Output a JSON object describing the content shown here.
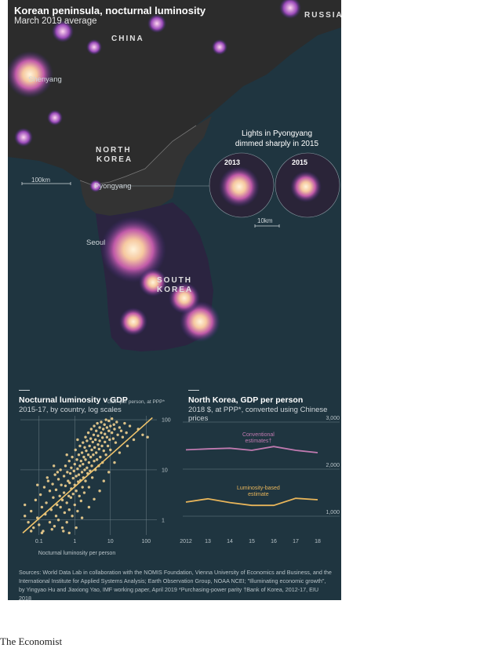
{
  "header": {
    "title": "Korean peninsula, nocturnal luminosity",
    "subtitle": "March 2019 average"
  },
  "map": {
    "labels": {
      "russia": "RUSSIA",
      "china": "CHINA",
      "shenyang": "Shenyang",
      "north_korea_1": "NORTH",
      "north_korea_2": "KOREA",
      "pyongyang": "Pyongyang",
      "seoul": "Seoul",
      "south_korea_1": "SOUTH",
      "south_korea_2": "KOREA"
    },
    "scale_main": "100km",
    "inset": {
      "title_line1": "Lights in Pyongyang",
      "title_line2": "dimmed sharply in 2015",
      "year_a": "2013",
      "year_b": "2015",
      "scale": "10km"
    },
    "colors": {
      "land": "#2e2e2e",
      "sea": "#1f3540",
      "glow": "#ffe8c0",
      "glow_mid": "#c05aa8",
      "glow_low": "#4a2f8a"
    }
  },
  "chart1": {
    "title": "Nocturnal luminosity v GDP",
    "subtitle": "2015-17, by country, log scales"
  },
  "chart2": {
    "title": "North Korea, GDP per person",
    "subtitle": "2018 $, at PPP*, converted using Chinese prices"
  },
  "chart_data": [
    {
      "type": "scatter",
      "title": "Nocturnal luminosity v GDP",
      "subtitle": "2015-17, by country, log scales",
      "xlabel": "Nocturnal luminosity per person",
      "ylabel": "GDP per person, at PPP*",
      "x_scale": "log",
      "y_scale": "log",
      "xlim": [
        0.03,
        200
      ],
      "ylim": [
        0.5,
        120
      ],
      "x_ticks": [
        "0.1",
        "1",
        "10",
        "100"
      ],
      "y_ticks": [
        "1",
        "10",
        "100"
      ],
      "trend_color": "#f0c46c",
      "point_color": "#f0d090",
      "trend_line": [
        [
          0.035,
          0.55
        ],
        [
          150,
          110
        ]
      ],
      "points": [
        [
          0.05,
          0.9
        ],
        [
          0.06,
          1.5
        ],
        [
          0.07,
          0.7
        ],
        [
          0.08,
          2.5
        ],
        [
          0.09,
          1.1
        ],
        [
          0.1,
          0.8
        ],
        [
          0.11,
          3.2
        ],
        [
          0.12,
          1.8
        ],
        [
          0.13,
          0.6
        ],
        [
          0.14,
          4.5
        ],
        [
          0.15,
          1.3
        ],
        [
          0.16,
          2.2
        ],
        [
          0.18,
          6.0
        ],
        [
          0.2,
          0.9
        ],
        [
          0.2,
          3.8
        ],
        [
          0.22,
          1.6
        ],
        [
          0.24,
          5.2
        ],
        [
          0.25,
          2.8
        ],
        [
          0.27,
          0.75
        ],
        [
          0.28,
          8.0
        ],
        [
          0.3,
          1.2
        ],
        [
          0.3,
          4.0
        ],
        [
          0.32,
          2.0
        ],
        [
          0.35,
          6.5
        ],
        [
          0.35,
          1.0
        ],
        [
          0.38,
          3.0
        ],
        [
          0.4,
          10.0
        ],
        [
          0.4,
          1.8
        ],
        [
          0.42,
          5.0
        ],
        [
          0.45,
          2.5
        ],
        [
          0.45,
          0.7
        ],
        [
          0.5,
          7.5
        ],
        [
          0.5,
          3.5
        ],
        [
          0.52,
          1.4
        ],
        [
          0.55,
          12.0
        ],
        [
          0.55,
          4.8
        ],
        [
          0.6,
          2.2
        ],
        [
          0.6,
          0.9
        ],
        [
          0.62,
          9.0
        ],
        [
          0.65,
          6.0
        ],
        [
          0.68,
          3.0
        ],
        [
          0.7,
          15.0
        ],
        [
          0.7,
          1.6
        ],
        [
          0.72,
          5.5
        ],
        [
          0.75,
          8.5
        ],
        [
          0.78,
          2.8
        ],
        [
          0.8,
          11.0
        ],
        [
          0.8,
          4.2
        ],
        [
          0.85,
          1.2
        ],
        [
          0.85,
          18.0
        ],
        [
          0.9,
          6.8
        ],
        [
          0.9,
          3.3
        ],
        [
          0.95,
          9.5
        ],
        [
          1.0,
          2.0
        ],
        [
          1.0,
          13.0
        ],
        [
          1.0,
          5.0
        ],
        [
          1.05,
          25.0
        ],
        [
          1.1,
          7.5
        ],
        [
          1.1,
          3.8
        ],
        [
          1.15,
          16.0
        ],
        [
          1.2,
          1.5
        ],
        [
          1.2,
          10.5
        ],
        [
          1.25,
          5.8
        ],
        [
          1.3,
          20.0
        ],
        [
          1.3,
          8.0
        ],
        [
          1.35,
          3.0
        ],
        [
          1.4,
          30.0
        ],
        [
          1.4,
          12.0
        ],
        [
          1.45,
          6.2
        ],
        [
          1.5,
          15.0
        ],
        [
          1.5,
          2.4
        ],
        [
          1.6,
          9.0
        ],
        [
          1.6,
          22.0
        ],
        [
          1.65,
          4.5
        ],
        [
          1.7,
          35.0
        ],
        [
          1.7,
          13.0
        ],
        [
          1.75,
          7.0
        ],
        [
          1.8,
          18.0
        ],
        [
          1.85,
          3.5
        ],
        [
          1.9,
          28.0
        ],
        [
          1.9,
          10.0
        ],
        [
          2.0,
          45.0
        ],
        [
          2.0,
          16.0
        ],
        [
          2.0,
          6.0
        ],
        [
          2.1,
          24.0
        ],
        [
          2.2,
          11.0
        ],
        [
          2.2,
          38.0
        ],
        [
          2.3,
          8.5
        ],
        [
          2.4,
          20.0
        ],
        [
          2.4,
          55.0
        ],
        [
          2.5,
          14.0
        ],
        [
          2.5,
          4.5
        ],
        [
          2.6,
          30.0
        ],
        [
          2.7,
          9.5
        ],
        [
          2.8,
          42.0
        ],
        [
          2.8,
          18.0
        ],
        [
          2.9,
          65.0
        ],
        [
          3.0,
          25.0
        ],
        [
          3.0,
          12.0
        ],
        [
          3.1,
          7.0
        ],
        [
          3.2,
          36.0
        ],
        [
          3.3,
          20.0
        ],
        [
          3.4,
          50.0
        ],
        [
          3.5,
          15.0
        ],
        [
          3.5,
          75.0
        ],
        [
          3.6,
          28.0
        ],
        [
          3.8,
          10.0
        ],
        [
          3.8,
          40.0
        ],
        [
          4.0,
          60.0
        ],
        [
          4.0,
          22.0
        ],
        [
          4.2,
          16.0
        ],
        [
          4.3,
          85.0
        ],
        [
          4.5,
          32.0
        ],
        [
          4.5,
          48.0
        ],
        [
          4.7,
          12.0
        ],
        [
          4.8,
          26.0
        ],
        [
          5.0,
          70.0
        ],
        [
          5.0,
          38.0
        ],
        [
          5.2,
          18.0
        ],
        [
          5.5,
          55.0
        ],
        [
          5.5,
          90.0
        ],
        [
          5.8,
          30.0
        ],
        [
          6.0,
          44.0
        ],
        [
          6.0,
          14.0
        ],
        [
          6.3,
          65.0
        ],
        [
          6.5,
          24.0
        ],
        [
          6.8,
          80.0
        ],
        [
          7.0,
          36.0
        ],
        [
          7.0,
          52.0
        ],
        [
          7.5,
          100.0
        ],
        [
          7.5,
          20.0
        ],
        [
          8.0,
          45.0
        ],
        [
          8.0,
          70.0
        ],
        [
          8.5,
          30.0
        ],
        [
          9.0,
          60.0
        ],
        [
          9.0,
          95.0
        ],
        [
          9.5,
          40.0
        ],
        [
          10.0,
          75.0
        ],
        [
          10.0,
          25.0
        ],
        [
          11.0,
          55.0
        ],
        [
          11.0,
          105.0
        ],
        [
          12.0,
          42.0
        ],
        [
          12.5,
          80.0
        ],
        [
          13.0,
          65.0
        ],
        [
          14.0,
          35.0
        ],
        [
          15.0,
          90.0
        ],
        [
          16.0,
          50.0
        ],
        [
          18.0,
          70.0
        ],
        [
          20.0,
          60.0
        ],
        [
          22.0,
          45.0
        ],
        [
          25.0,
          85.0
        ],
        [
          28.0,
          55.0
        ],
        [
          35.0,
          75.0
        ],
        [
          45.0,
          40.0
        ],
        [
          60.0,
          65.0
        ],
        [
          80.0,
          50.0
        ],
        [
          110.0,
          45.0
        ],
        [
          0.06,
          0.6
        ],
        [
          0.09,
          5.0
        ],
        [
          0.12,
          0.55
        ],
        [
          0.17,
          7.0
        ],
        [
          0.23,
          0.65
        ],
        [
          0.33,
          9.0
        ],
        [
          0.48,
          0.6
        ],
        [
          0.7,
          0.55
        ],
        [
          1.1,
          0.7
        ],
        [
          1.6,
          1.1
        ],
        [
          2.5,
          1.8
        ],
        [
          3.5,
          2.6
        ],
        [
          5.0,
          3.8
        ],
        [
          6.5,
          6.0
        ],
        [
          9.0,
          9.0
        ],
        [
          13.0,
          14.0
        ],
        [
          18.0,
          22.0
        ],
        [
          30.0,
          30.0
        ],
        [
          0.04,
          1.2
        ],
        [
          0.04,
          2.0
        ],
        [
          0.26,
          12.0
        ],
        [
          0.6,
          20.0
        ],
        [
          1.2,
          40.0
        ]
      ]
    },
    {
      "type": "line",
      "title": "North Korea, GDP per person",
      "subtitle": "2018 $, at PPP*, converted using Chinese prices",
      "x": [
        2012,
        2013,
        2014,
        2015,
        2016,
        2017,
        2018
      ],
      "x_ticks": [
        "2012",
        "13",
        "14",
        "15",
        "16",
        "17",
        "18"
      ],
      "ylim": [
        1000,
        3000
      ],
      "y_ticks": [
        "1,000",
        "2,000",
        "3,000"
      ],
      "series": [
        {
          "name": "Conventional estimates†",
          "color": "#c07ab0",
          "values": [
            2410,
            2430,
            2445,
            2400,
            2480,
            2400,
            2350
          ]
        },
        {
          "name": "Luminosity-based estimate",
          "color": "#e8b55a",
          "values": [
            1300,
            1370,
            1290,
            1230,
            1230,
            1380,
            1350
          ]
        }
      ]
    }
  ],
  "footer": {
    "sources": "Sources: World Data Lab in collaboration with the NOMIS Foundation, Vienna University of Economics and Business, and the International Institute for Applied Systems Analysis; Earth Observation Group, NOAA NCEI; \"Illuminating economic growth\", by Yingyao Hu and Jiaxiong Yao, IMF working paper, April 2019   *Purchasing-power parity   †Bank of Korea, 2012-17, EIU 2018",
    "logo": "The Economist"
  }
}
